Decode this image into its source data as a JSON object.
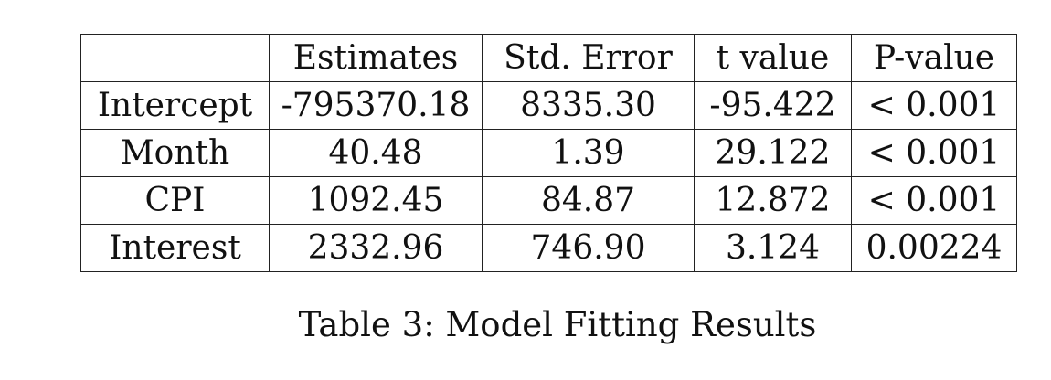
{
  "table": {
    "headers": [
      "",
      "Estimates",
      "Std. Error",
      "t value",
      "P-value"
    ],
    "rows": [
      [
        "Intercept",
        "-795370.18",
        "8335.30",
        "-95.422",
        "< 0.001"
      ],
      [
        "Month",
        "40.48",
        "1.39",
        "29.122",
        "< 0.001"
      ],
      [
        "CPI",
        "1092.45",
        "84.87",
        "12.872",
        "< 0.001"
      ],
      [
        "Interest",
        "2332.96",
        "746.90",
        "3.124",
        "0.00224"
      ]
    ]
  },
  "caption": {
    "text": "Table 3: Model Fitting Results"
  }
}
